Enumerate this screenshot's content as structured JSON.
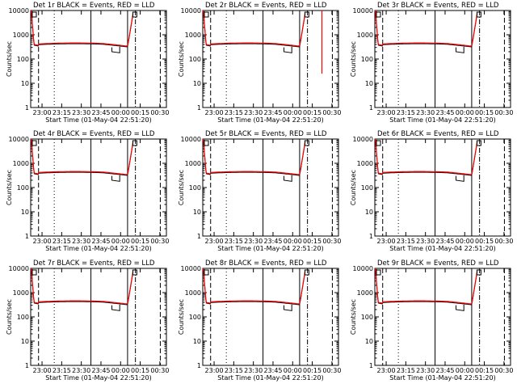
{
  "chart_data": {
    "type": "line",
    "ylabel": "Counts/sec",
    "xlabel": "Start Time (01-May-04 22:51:20)",
    "xticks": [
      "23:00",
      "23:15",
      "23:30",
      "23:45",
      "00:00",
      "00:15",
      "00:30"
    ],
    "yticks": [
      "1",
      "10",
      "100",
      "1000",
      "10000"
    ],
    "ylim": [
      1,
      10000
    ],
    "yscale": "log",
    "colors": {
      "black": "#000000",
      "red": "#ff0000"
    },
    "panels": [
      {
        "title": "Det 1r BLACK = Events, RED = LLD"
      },
      {
        "title": "Det 2r BLACK = Events, RED = LLD"
      },
      {
        "title": "Det 3r BLACK = Events, RED = LLD"
      },
      {
        "title": "Det 4r BLACK = Events, RED = LLD"
      },
      {
        "title": "Det 5r BLACK = Events, RED = LLD"
      },
      {
        "title": "Det 6r BLACK = Events, RED = LLD"
      },
      {
        "title": "Det 7r BLACK = Events, RED = LLD"
      },
      {
        "title": "Det 8r BLACK = Events, RED = LLD"
      },
      {
        "title": "Det 9r BLACK = Events, RED = LLD"
      }
    ]
  }
}
